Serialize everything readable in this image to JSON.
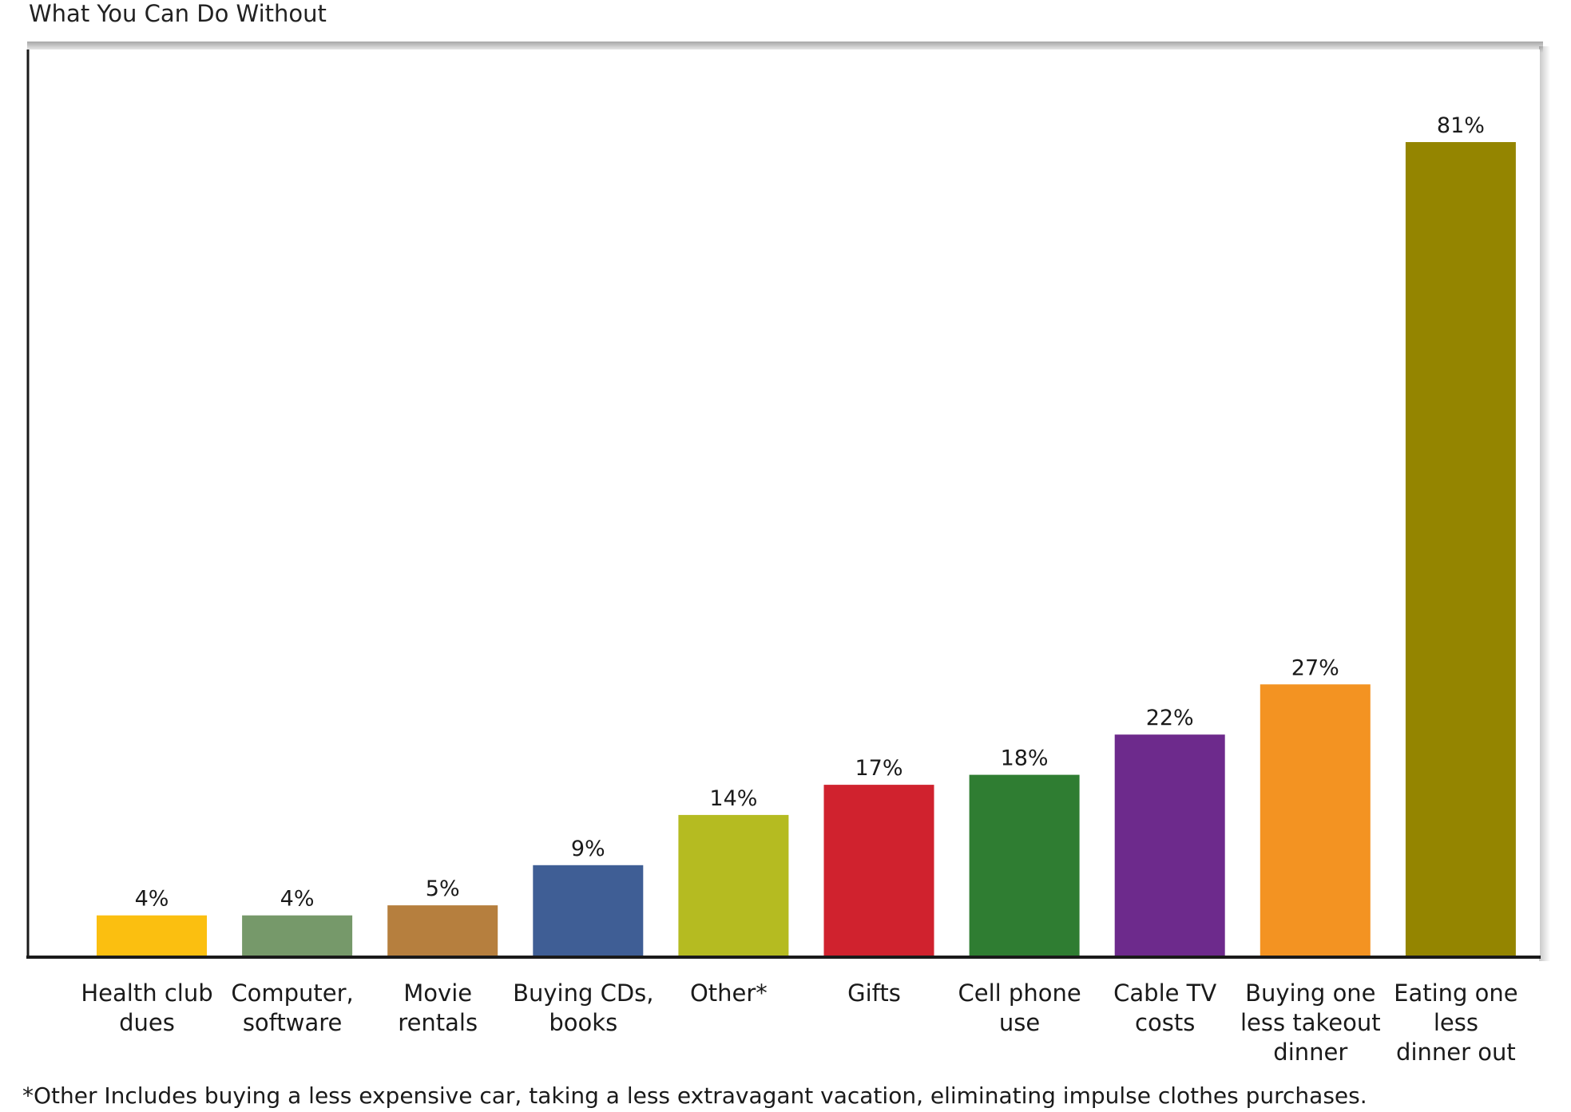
{
  "chart_data": {
    "type": "bar",
    "title": "What You Can Do Without",
    "categories": [
      [
        "Health club",
        "dues"
      ],
      [
        "Computer,",
        "software"
      ],
      [
        "Movie",
        "rentals"
      ],
      [
        "Buying CDs,",
        "books"
      ],
      [
        "Other*"
      ],
      [
        "Gifts"
      ],
      [
        "Cell phone",
        "use"
      ],
      [
        "Cable TV",
        "costs"
      ],
      [
        "Buying one",
        "less takeout",
        "dinner"
      ],
      [
        "Eating one",
        "less",
        "dinner out"
      ]
    ],
    "values": [
      4,
      4,
      5,
      9,
      14,
      17,
      18,
      22,
      27,
      81
    ],
    "value_labels": [
      "4%",
      "4%",
      "5%",
      "9%",
      "14%",
      "17%",
      "18%",
      "22%",
      "27%",
      "81%"
    ],
    "colors": [
      "#fbbf10",
      "#76996a",
      "#b67f3e",
      "#3f5e95",
      "#b5bb21",
      "#d0222e",
      "#2f7d32",
      "#6d2a8c",
      "#f39322",
      "#948500"
    ],
    "ylim": [
      0,
      90
    ],
    "xlabel": "",
    "ylabel": "",
    "grid": false,
    "footnote": "*Other Includes buying a less expensive car, taking a less extravagant vacation, eliminating impulse clothes purchases."
  }
}
